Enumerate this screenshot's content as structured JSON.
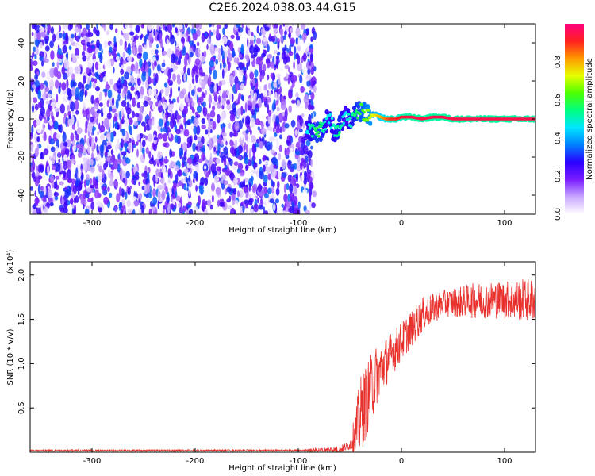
{
  "title": "C2E6.2024.038.03.44.G15",
  "chart_data": [
    {
      "type": "heatmap",
      "xlabel": "Height of straight line (km)",
      "ylabel": "Frequency (Hz)",
      "xlim": [
        -360,
        130
      ],
      "ylim": [
        -50,
        50
      ],
      "xticks": [
        -300,
        -200,
        -100,
        0,
        100
      ],
      "yticks": [
        -40,
        -20,
        0,
        20,
        40
      ],
      "colorbar": {
        "label": "Normalized spectral amplitude",
        "range": [
          0,
          1
        ],
        "ticks": [
          "0.0",
          "0.2",
          "0.4",
          "0.6",
          "0.8"
        ],
        "colors": [
          "#ffffff",
          "#c9a8ff",
          "#7a1cff",
          "#2a00ff",
          "#0080ff",
          "#00e5ff",
          "#00ff80",
          "#4cff00",
          "#e6ff00",
          "#ff9900",
          "#ff2020",
          "#ff0080"
        ]
      },
      "features": {
        "noise_region_x": [
          -360,
          -88
        ],
        "noise_amplitude": 0.35,
        "signal_track": {
          "x": [
            -92,
            -85,
            -80,
            -75,
            -70,
            -65,
            -60,
            -55,
            -50,
            -45,
            -40,
            -35,
            -30,
            -25,
            -20,
            -15,
            -10,
            -5,
            0,
            10,
            20,
            30,
            40,
            50,
            60,
            70,
            80,
            90,
            100,
            110,
            120,
            130
          ],
          "freq": [
            -5,
            -6,
            -7,
            -4,
            2,
            -8,
            -4,
            3,
            -2,
            2,
            4,
            3,
            2,
            2,
            1,
            0,
            0,
            0,
            1,
            1,
            0,
            1,
            1,
            0,
            0,
            0,
            0,
            0,
            0,
            0,
            0,
            0
          ],
          "amplitude": [
            0.45,
            0.55,
            0.6,
            0.5,
            0.45,
            0.5,
            0.55,
            0.45,
            0.5,
            0.55,
            0.6,
            0.65,
            0.7,
            0.75,
            0.8,
            0.85,
            0.9,
            0.9,
            0.92,
            0.95,
            0.95,
            0.95,
            0.95,
            0.95,
            0.95,
            0.95,
            0.95,
            0.95,
            0.95,
            0.95,
            0.95,
            0.95
          ]
        }
      }
    },
    {
      "type": "line",
      "xlabel": "Height of straight line (km)",
      "ylabel": "SNR (10 * v/v)",
      "y_multiplier": "(x10⁴)",
      "xlim": [
        -360,
        130
      ],
      "ylim": [
        0,
        2.15
      ],
      "xticks": [
        -300,
        -200,
        -100,
        0,
        100
      ],
      "yticks": [
        0.5,
        1.0,
        1.5,
        2.0
      ],
      "ytick_labels": [
        "0.5",
        "1.0",
        "1.5",
        "2.0"
      ],
      "color": "#e8302c",
      "trend": {
        "x": [
          -360,
          -100,
          -60,
          -50,
          -45,
          -40,
          -35,
          -30,
          -25,
          -20,
          -10,
          0,
          10,
          20,
          30,
          40,
          60,
          80,
          100,
          130
        ],
        "y": [
          0.02,
          0.02,
          0.03,
          0.08,
          0.2,
          0.4,
          0.55,
          0.7,
          0.85,
          0.95,
          1.1,
          1.25,
          1.4,
          1.55,
          1.62,
          1.68,
          1.7,
          1.72,
          1.72,
          1.72
        ]
      },
      "noise_amplitude": {
        "x": [
          -360,
          -100,
          -50,
          -40,
          -30,
          -20,
          0,
          20,
          40,
          70,
          100,
          130
        ],
        "y": [
          0.01,
          0.01,
          0.05,
          0.45,
          0.4,
          0.3,
          0.22,
          0.2,
          0.15,
          0.2,
          0.22,
          0.25
        ]
      }
    }
  ]
}
